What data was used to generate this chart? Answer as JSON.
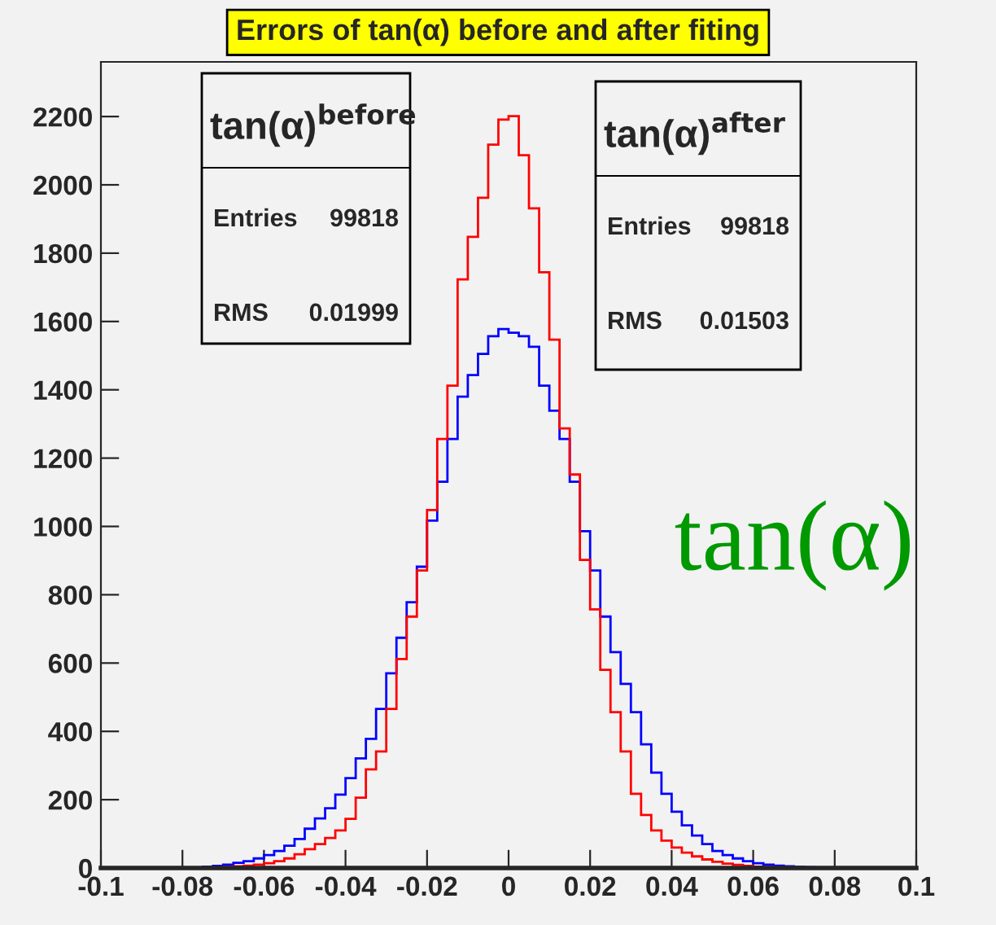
{
  "chart_data": {
    "type": "histogram",
    "title": "Errors of tan(α) before and after fiting",
    "bins": [
      -0.1,
      -0.0975,
      -0.095,
      -0.0925,
      -0.09,
      -0.0875,
      -0.085,
      -0.0825,
      -0.08,
      -0.0775,
      -0.075,
      -0.0725,
      -0.07,
      -0.0675,
      -0.065,
      -0.0625,
      -0.06,
      -0.0575,
      -0.055,
      -0.0525,
      -0.05,
      -0.0475,
      -0.045,
      -0.0425,
      -0.04,
      -0.0375,
      -0.035,
      -0.0325,
      -0.03,
      -0.0275,
      -0.025,
      -0.0225,
      -0.02,
      -0.0175,
      -0.015,
      -0.0125,
      -0.01,
      -0.0075,
      -0.005,
      -0.0025,
      0,
      0.0025,
      0.005,
      0.0075,
      0.01,
      0.0125,
      0.015,
      0.0175,
      0.02,
      0.0225,
      0.025,
      0.0275,
      0.03,
      0.0325,
      0.035,
      0.0375,
      0.04,
      0.0425,
      0.045,
      0.0475,
      0.05,
      0.0525,
      0.055,
      0.0575,
      0.06,
      0.0625,
      0.065,
      0.0675,
      0.07,
      0.0725,
      0.075,
      0.0775,
      0.08,
      0.0825,
      0.085,
      0.0875,
      0.09,
      0.0925,
      0.095,
      0.0975,
      0.1
    ],
    "series": [
      {
        "color": "#0000ff",
        "values": [
          0,
          0,
          0,
          0,
          0,
          0,
          0,
          0,
          0,
          0,
          4,
          6,
          10,
          15,
          20,
          28,
          38,
          50,
          65,
          85,
          115,
          145,
          175,
          215,
          263,
          321,
          378,
          466,
          570,
          674,
          778,
          882,
          1017,
          1131,
          1256,
          1380,
          1443,
          1505,
          1557,
          1578,
          1567,
          1557,
          1526,
          1412,
          1339,
          1256,
          1131,
          986,
          871,
          736,
          632,
          539,
          456,
          362,
          279,
          217,
          165,
          125,
          95,
          70,
          50,
          38,
          28,
          20,
          14,
          10,
          7,
          5,
          3,
          2,
          0,
          0,
          0,
          0,
          0,
          0,
          0,
          0,
          0,
          0
        ]
      },
      {
        "color": "#ff0000",
        "values": [
          0,
          0,
          0,
          0,
          0,
          0,
          0,
          0,
          0,
          0,
          1,
          2,
          3,
          5,
          7,
          10,
          14,
          20,
          28,
          40,
          55,
          70,
          88,
          110,
          144,
          206,
          289,
          341,
          466,
          612,
          736,
          871,
          1048,
          1256,
          1412,
          1723,
          1848,
          1962,
          2118,
          2191,
          2201,
          2087,
          1931,
          1744,
          1547,
          1287,
          1152,
          902,
          757,
          580,
          456,
          341,
          217,
          155,
          110,
          80,
          60,
          45,
          34,
          25,
          18,
          13,
          9,
          6,
          4,
          3,
          2,
          1,
          1,
          0,
          0,
          0,
          0,
          0,
          0,
          0,
          0,
          0,
          0,
          0
        ]
      }
    ],
    "xlim": [
      -0.1,
      0.1
    ],
    "xticks": [
      -0.1,
      -0.08,
      -0.06,
      -0.04,
      -0.02,
      0,
      0.02,
      0.04,
      0.06,
      0.08,
      0.1
    ],
    "ylim": [
      0,
      2360
    ],
    "yticks": [
      0,
      200,
      400,
      600,
      800,
      1000,
      1200,
      1400,
      1600,
      1800,
      2000,
      2200
    ],
    "grid": false,
    "annotations": [
      "tan(α)$^{before}$",
      "Entries",
      "99818",
      "RMS",
      "0.01999",
      "tan(α)$^{after}$",
      "Entries",
      "99818",
      "RMS",
      "0.01503",
      "tan(α)"
    ]
  }
}
